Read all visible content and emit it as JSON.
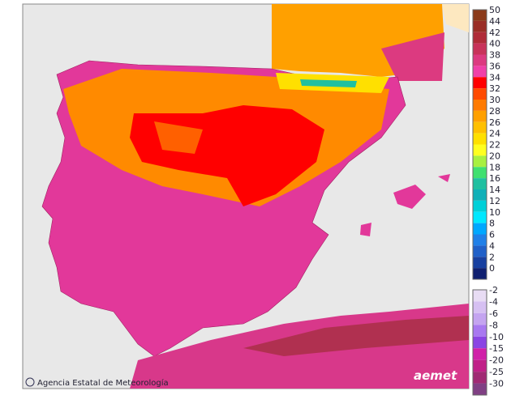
{
  "credit": "Agencia Estatal de Meteorología",
  "logo": "aemet",
  "legend": {
    "upper": [
      {
        "label": 50,
        "color": "#8b3a1a"
      },
      {
        "label": 44,
        "color": "#9a2e26"
      },
      {
        "label": 42,
        "color": "#b02c38"
      },
      {
        "label": 40,
        "color": "#c8335a"
      },
      {
        "label": 38,
        "color": "#dc3a80"
      },
      {
        "label": 36,
        "color": "#f040a8"
      },
      {
        "label": 34,
        "color": "#ff0000"
      },
      {
        "label": 32,
        "color": "#ff4a00"
      },
      {
        "label": 30,
        "color": "#ff7a00"
      },
      {
        "label": 28,
        "color": "#ffa000"
      },
      {
        "label": 26,
        "color": "#ffc000"
      },
      {
        "label": 24,
        "color": "#ffe000"
      },
      {
        "label": 22,
        "color": "#ffff20"
      },
      {
        "label": 20,
        "color": "#a8f040"
      },
      {
        "label": 18,
        "color": "#40e070"
      },
      {
        "label": 16,
        "color": "#20c0a0"
      },
      {
        "label": 14,
        "color": "#10b0b8"
      },
      {
        "label": 12,
        "color": "#00d0d8"
      },
      {
        "label": 10,
        "color": "#00e8ff"
      },
      {
        "label": 8,
        "color": "#00a8ff"
      },
      {
        "label": 6,
        "color": "#2080e8"
      },
      {
        "label": 4,
        "color": "#2060c8"
      },
      {
        "label": 2,
        "color": "#1840a0"
      },
      {
        "label": 0,
        "color": "#102070"
      }
    ],
    "lower": [
      {
        "label": -2,
        "color": "#e8dcf4"
      },
      {
        "label": -4,
        "color": "#d6c0f2"
      },
      {
        "label": -6,
        "color": "#c4a4f0"
      },
      {
        "label": -8,
        "color": "#a878f0"
      },
      {
        "label": -10,
        "color": "#8a44e4"
      },
      {
        "label": -15,
        "color": "#d020a8"
      },
      {
        "label": -20,
        "color": "#c02088"
      },
      {
        "label": -25,
        "color": "#a02a74"
      },
      {
        "label": -30,
        "color": "#804084"
      }
    ]
  }
}
